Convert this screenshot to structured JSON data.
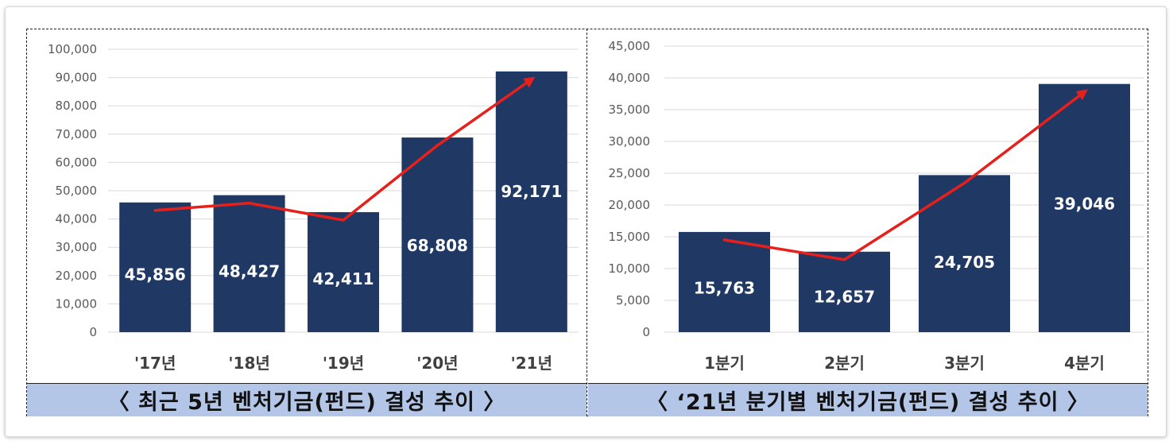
{
  "captions": {
    "left": "〈 최근 5년 벤처기금(펀드) 결성 추이 〉",
    "right": "〈 ‘21년 분기별 벤처기금(펀드) 결성 추이 〉"
  },
  "colors": {
    "bar": "#1f3864",
    "trend": "#e8201c",
    "grid": "#d9d9d9",
    "caption_bg": "#b4c6e7"
  },
  "chart_data": [
    {
      "type": "bar",
      "categories": [
        "'17년",
        "'18년",
        "'19년",
        "'20년",
        "'21년"
      ],
      "values": [
        45856,
        48427,
        42411,
        68808,
        92171
      ],
      "value_labels": [
        "45,856",
        "48,427",
        "42,411",
        "68,808",
        "92,171"
      ],
      "trend_line": true,
      "ylim": [
        0,
        100000
      ],
      "yticks": [
        0,
        10000,
        20000,
        30000,
        40000,
        50000,
        60000,
        70000,
        80000,
        90000,
        100000
      ],
      "ytick_labels": [
        "0",
        "10,000",
        "20,000",
        "30,000",
        "40,000",
        "50,000",
        "60,000",
        "70,000",
        "80,000",
        "90,000",
        "100,000"
      ],
      "grid": true,
      "title": "",
      "xlabel": "",
      "ylabel": ""
    },
    {
      "type": "bar",
      "categories": [
        "1분기",
        "2분기",
        "3분기",
        "4분기"
      ],
      "values": [
        15763,
        12657,
        24705,
        39046
      ],
      "value_labels": [
        "15,763",
        "12,657",
        "24,705",
        "39,046"
      ],
      "trend_line": true,
      "ylim": [
        0,
        45000
      ],
      "yticks": [
        0,
        5000,
        10000,
        15000,
        20000,
        25000,
        30000,
        35000,
        40000,
        45000
      ],
      "ytick_labels": [
        "0",
        "5,000",
        "10,000",
        "15,000",
        "20,000",
        "25,000",
        "30,000",
        "35,000",
        "40,000",
        "45,000"
      ],
      "grid": true,
      "title": "",
      "xlabel": "",
      "ylabel": ""
    }
  ]
}
